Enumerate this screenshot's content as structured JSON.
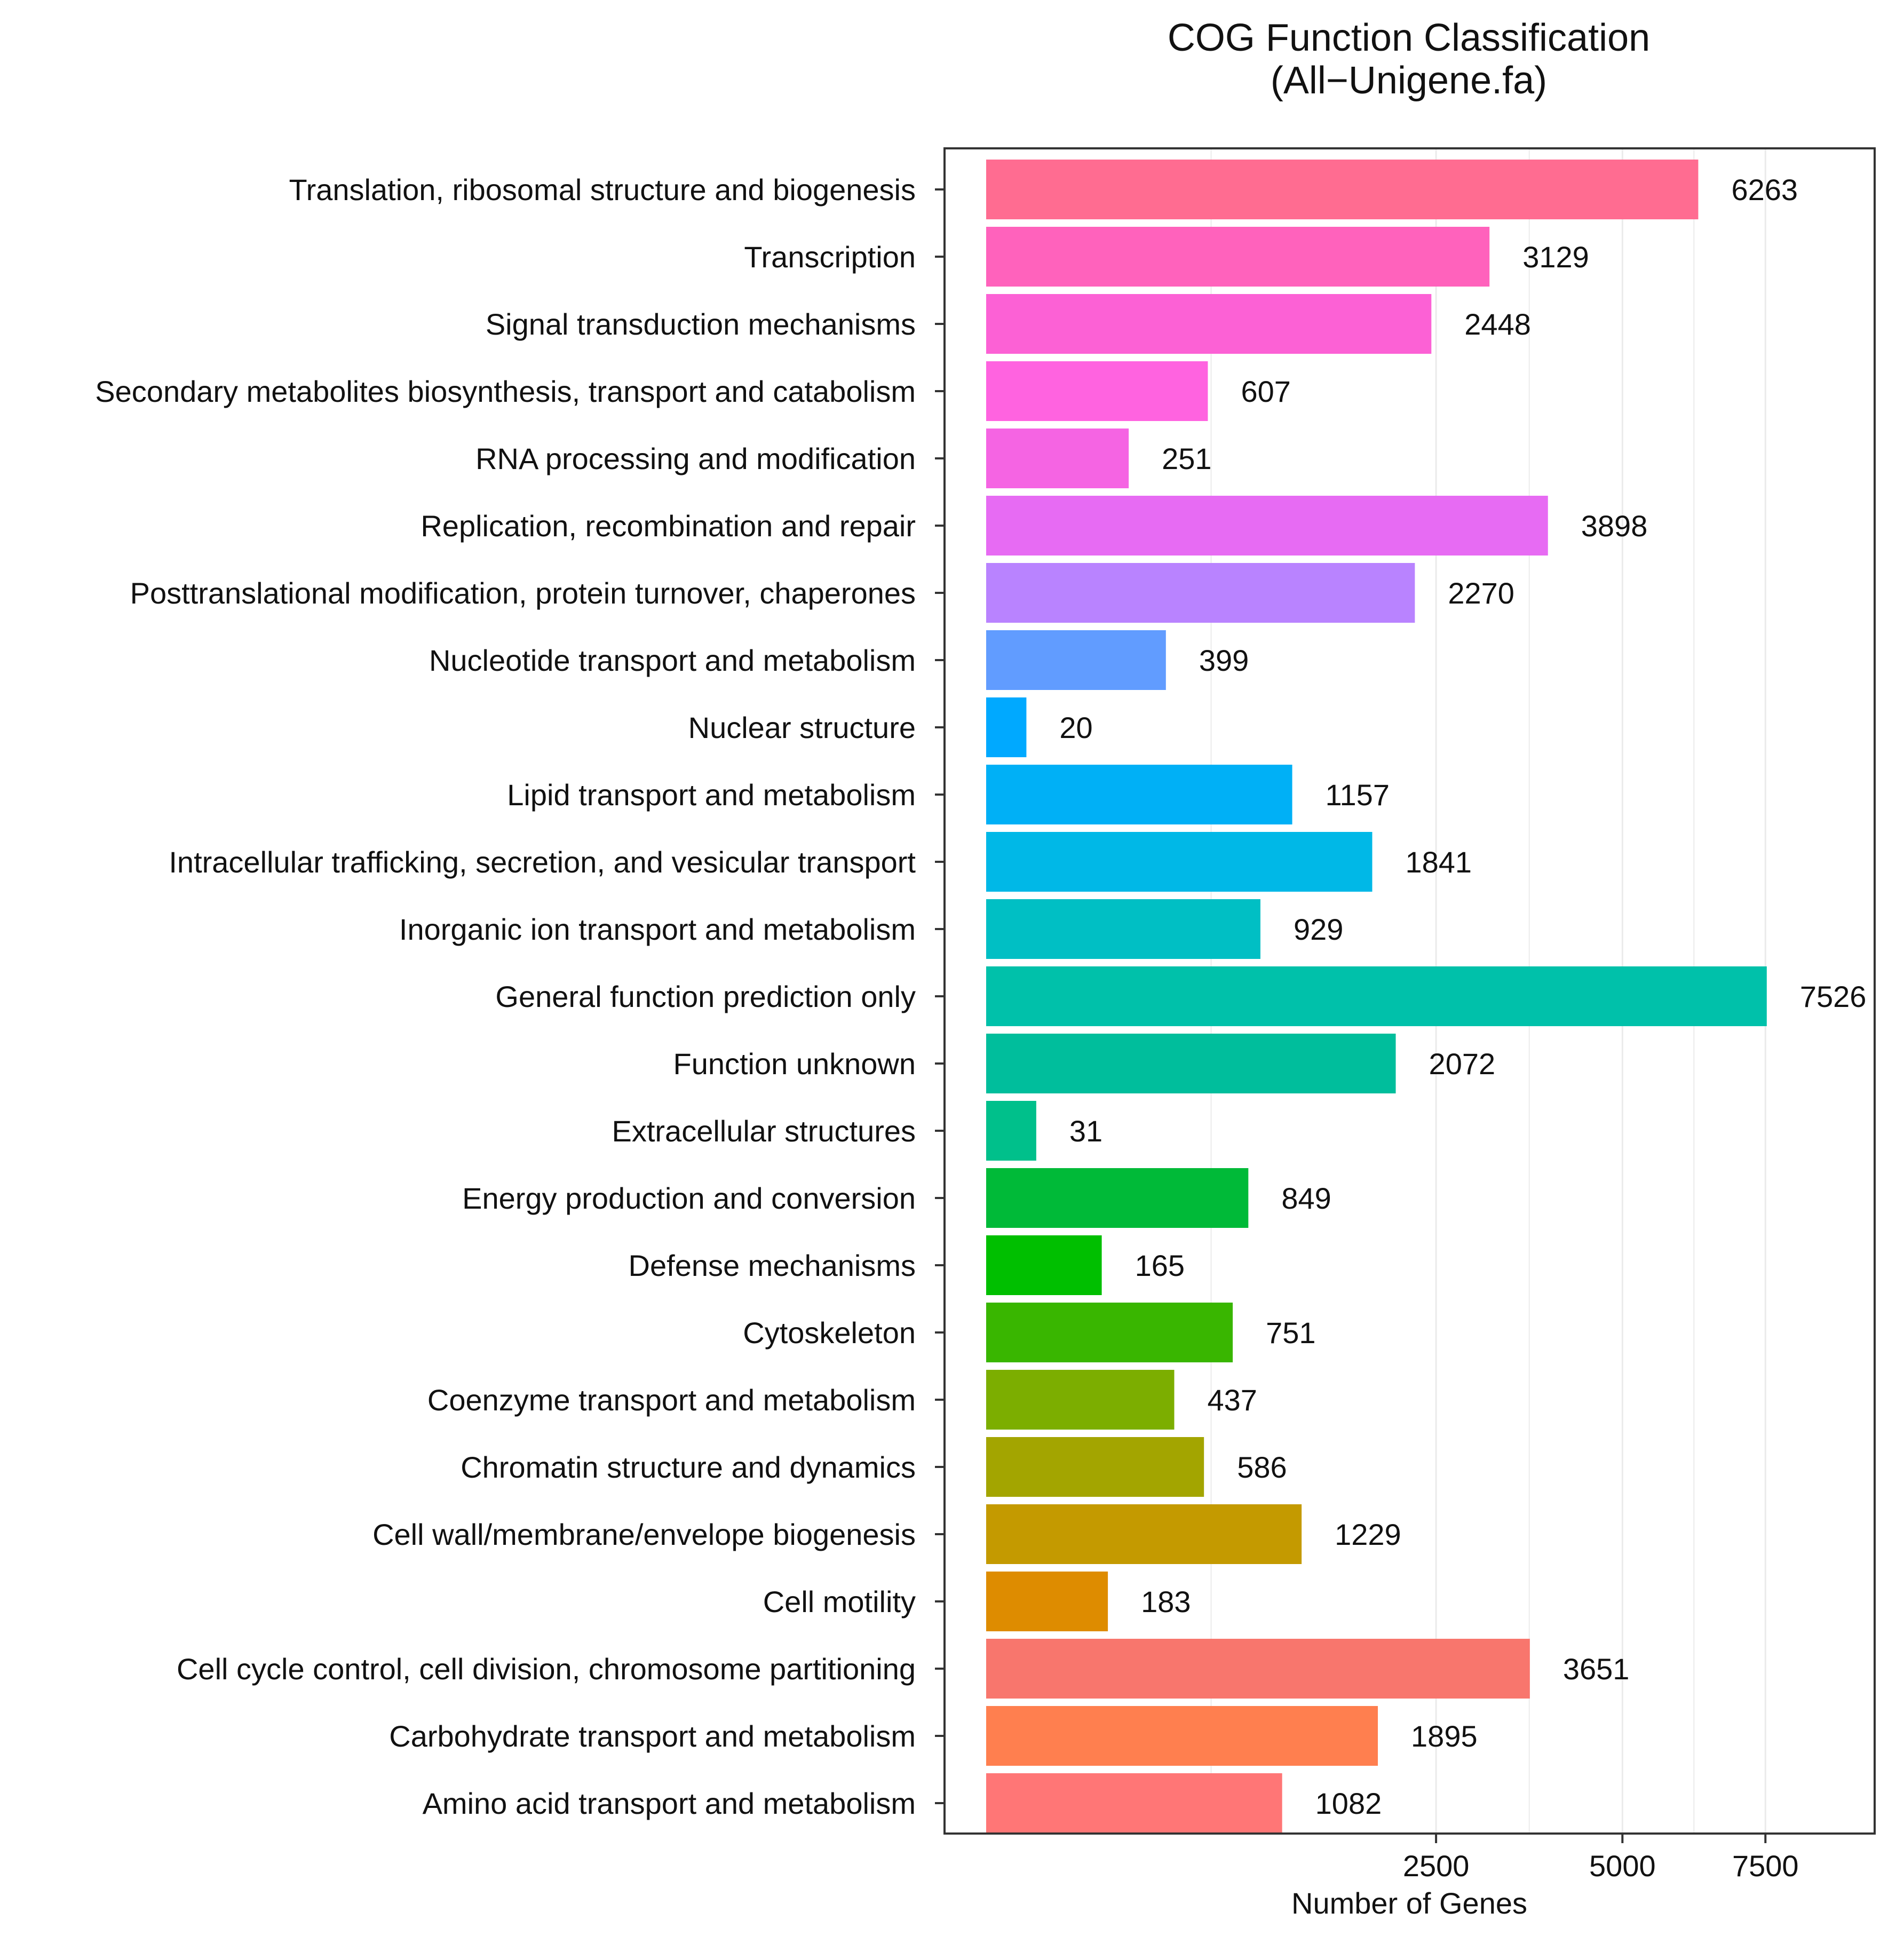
{
  "chart_data": {
    "type": "bar",
    "orientation": "horizontal",
    "title": "COG Function Classification",
    "subtitle": "(All−Unigene.fa)",
    "xlabel": "Number of Genes",
    "ylabel": "",
    "x_scale": "sqrt",
    "xlim": [
      0,
      9750
    ],
    "x_ticks": [
      2500,
      5000,
      7500
    ],
    "x_tick_labels": [
      "2500",
      "5000",
      "7500"
    ],
    "grid": true,
    "categories": [
      "Translation, ribosomal structure and biogenesis",
      "Transcription",
      "Signal transduction mechanisms",
      "Secondary metabolites biosynthesis, transport and catabolism",
      "RNA processing and modification",
      "Replication, recombination and repair",
      "Posttranslational modification, protein turnover, chaperones",
      "Nucleotide transport and metabolism",
      "Nuclear structure",
      "Lipid transport and metabolism",
      "Intracellular trafficking, secretion, and vesicular transport",
      "Inorganic ion transport and metabolism",
      "General function prediction only",
      "Function unknown",
      "Extracellular structures",
      "Energy production and conversion",
      "Defense mechanisms",
      "Cytoskeleton",
      "Coenzyme transport and metabolism",
      "Chromatin structure and dynamics",
      "Cell wall/membrane/envelope biogenesis",
      "Cell motility",
      "Cell cycle control, cell division, chromosome partitioning",
      "Carbohydrate transport and metabolism",
      "Amino acid transport and metabolism"
    ],
    "values": [
      6263,
      3129,
      2448,
      607,
      251,
      3898,
      2270,
      399,
      20,
      1157,
      1841,
      929,
      7526,
      2072,
      31,
      849,
      165,
      751,
      437,
      586,
      1229,
      183,
      3651,
      1895,
      1082
    ],
    "value_labels": [
      "6263",
      "3129",
      "2448",
      "607",
      "251",
      "3898",
      "2270",
      "399",
      "20",
      "1157",
      "1841",
      "929",
      "7526",
      "2072",
      "31",
      "849",
      "165",
      "751",
      "437",
      "586",
      "1229",
      "183",
      "3651",
      "1895",
      "1082"
    ],
    "colors": [
      "#FF6C91",
      "#FF62BC",
      "#FC61D5",
      "#FF63E0",
      "#F564E3",
      "#E76BF3",
      "#B983FF",
      "#619CFF",
      "#00A9FF",
      "#00B0F6",
      "#00B8E7",
      "#00BFC4",
      "#00C1AA",
      "#00BE9C",
      "#00C08B",
      "#00BA38",
      "#00BF00",
      "#39B600",
      "#7CAE00",
      "#A3A500",
      "#C49A00",
      "#DE8C00",
      "#F8766D",
      "#FF7F4F",
      "#FF7676"
    ],
    "frame_color": "#333333",
    "grid_color": "#EBEBEB"
  }
}
